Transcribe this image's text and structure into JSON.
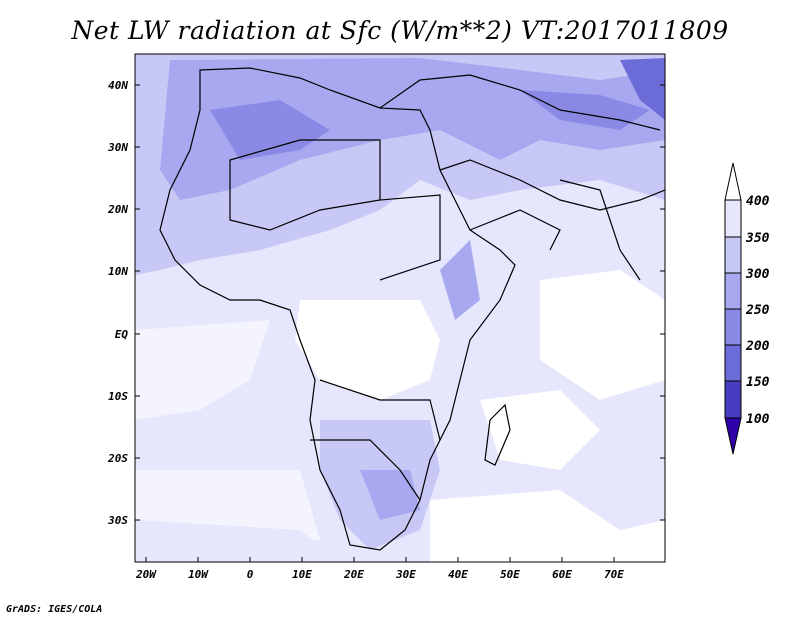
{
  "title": "Net LW radiation at Sfc (W/m**2) VT:2017011809",
  "footer": "GrADS: IGES/COLA",
  "map": {
    "lat_labels": [
      "40N",
      "30N",
      "20N",
      "10N",
      "EQ",
      "10S",
      "20S",
      "30S"
    ],
    "lon_labels": [
      "20W",
      "10W",
      "0",
      "10E",
      "20E",
      "30E",
      "40E",
      "50E",
      "60E",
      "70E"
    ]
  },
  "colorbar": {
    "labels": [
      "400",
      "350",
      "300",
      "250",
      "200",
      "150",
      "100"
    ],
    "colors": [
      "#ffffff",
      "#e6e6fc",
      "#c8c8f6",
      "#a8a8f0",
      "#8a8ae6",
      "#6c6cd8",
      "#4a3cc0",
      "#3000a8"
    ]
  }
}
